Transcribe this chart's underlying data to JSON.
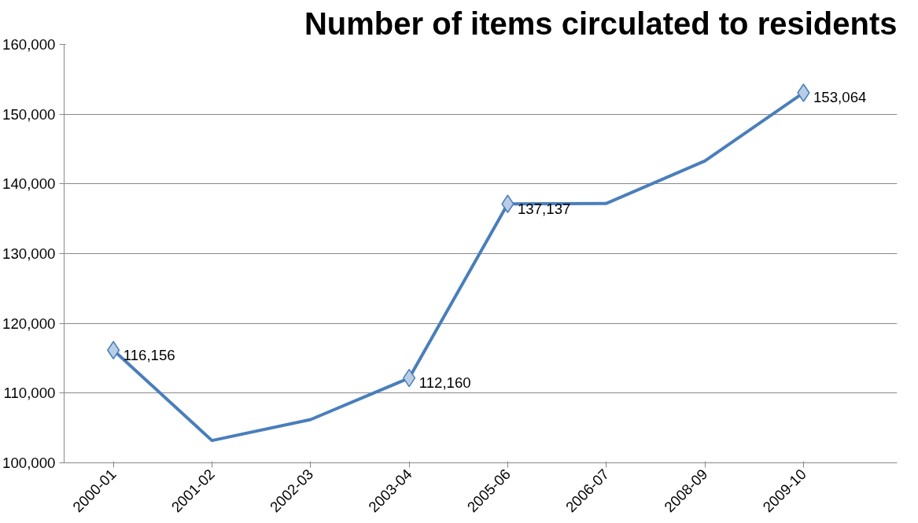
{
  "chart_data": {
    "type": "line",
    "title": "Number of items circulated to residents",
    "categories": [
      "2000-01",
      "2001-02",
      "2002-03",
      "2003-04",
      "2005-06",
      "2006-07",
      "2008-09",
      "2009-10"
    ],
    "series": [
      {
        "color": "#4a7ebb",
        "values": [
          116156,
          103200,
          106200,
          112160,
          137137,
          137200,
          143300,
          153064
        ],
        "marker": "none"
      },
      {
        "type": "scatter",
        "color": "#b9cde5",
        "values": [
          116156,
          null,
          null,
          112160,
          137137,
          null,
          null,
          153064
        ],
        "marker": "diamond",
        "value_labels": [
          "116,156",
          null,
          null,
          "112,160",
          "137,137",
          null,
          null,
          "153,064"
        ]
      }
    ],
    "ylim": [
      100000,
      160000
    ],
    "yticks": [
      {
        "value": 100000,
        "label": "100,000"
      },
      {
        "value": 110000,
        "label": "110,000"
      },
      {
        "value": 120000,
        "label": "120,000"
      },
      {
        "value": 130000,
        "label": "130,000"
      },
      {
        "value": 140000,
        "label": "140,000"
      },
      {
        "value": 150000,
        "label": "150,000"
      },
      {
        "value": 160000,
        "label": "160,000"
      }
    ],
    "grid": "y"
  }
}
